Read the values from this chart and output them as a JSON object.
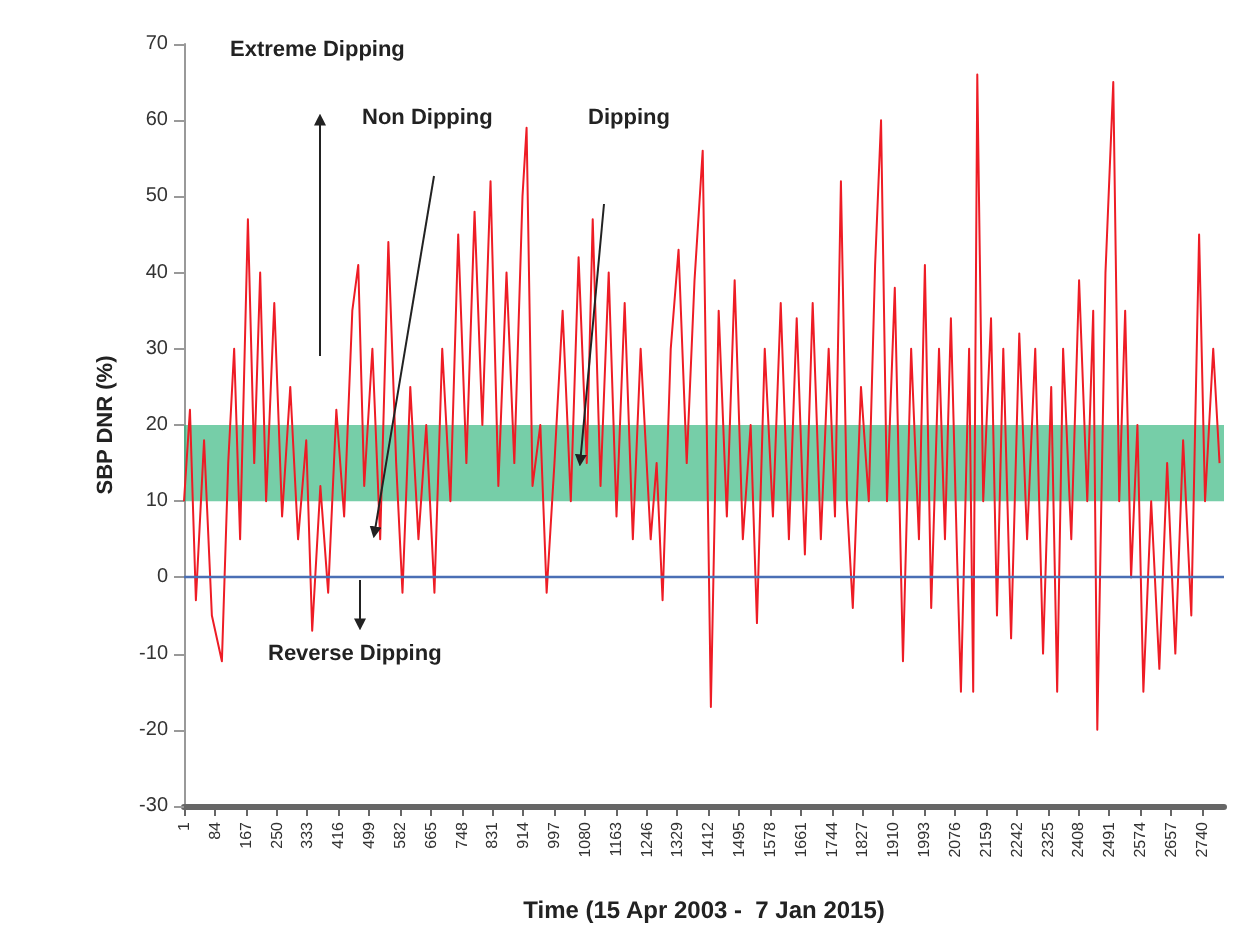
{
  "chart_data": {
    "type": "line",
    "xlabel": "Time (15 Apr 2003 -  7 Jan 2015)",
    "ylabel": "SBP DNR (%)",
    "annotations": [
      "Extreme Dipping",
      "Non Dipping",
      "Dipping",
      "Reverse Dipping"
    ],
    "x": [
      1,
      17,
      33,
      55,
      76,
      103,
      120,
      136,
      152,
      173,
      190,
      206,
      222,
      244,
      265,
      287,
      308,
      330,
      346,
      368,
      389,
      411,
      432,
      454,
      470,
      486,
      508,
      529,
      551,
      572,
      589,
      610,
      632,
      653,
      675,
      696,
      718,
      739,
      761,
      783,
      804,
      826,
      847,
      869,
      890,
      912,
      923,
      939,
      960,
      977,
      998,
      1020,
      1042,
      1063,
      1085,
      1101,
      1122,
      1144,
      1165,
      1187,
      1209,
      1230,
      1257,
      1273,
      1289,
      1311,
      1332,
      1354,
      1375,
      1397,
      1419,
      1440,
      1462,
      1483,
      1505,
      1526,
      1543,
      1564,
      1586,
      1607,
      1629,
      1650,
      1672,
      1693,
      1715,
      1736,
      1753,
      1769,
      1785,
      1801,
      1823,
      1844,
      1861,
      1877,
      1893,
      1914,
      1936,
      1958,
      1979,
      1995,
      2012,
      2033,
      2049,
      2065,
      2082,
      2092,
      2114,
      2125,
      2136,
      2152,
      2173,
      2189,
      2206,
      2227,
      2249,
      2270,
      2292,
      2313,
      2335,
      2351,
      2367,
      2389,
      2410,
      2432,
      2448,
      2459,
      2481,
      2502,
      2518,
      2534,
      2550,
      2567,
      2583,
      2604,
      2626,
      2647,
      2669,
      2690,
      2712,
      2733,
      2749,
      2771,
      2788
    ],
    "series": [
      {
        "color": "#ee1c25",
        "values": [
          10,
          22,
          -3,
          18,
          -5,
          -11,
          15,
          30,
          5,
          47,
          15,
          40,
          10,
          36,
          8,
          25,
          5,
          18,
          -7,
          12,
          -2,
          22,
          8,
          35,
          41,
          12,
          30,
          5,
          44,
          15,
          -2,
          25,
          5,
          20,
          -2,
          30,
          10,
          45,
          15,
          48,
          20,
          52,
          12,
          40,
          15,
          50,
          59,
          12,
          20,
          -2,
          15,
          35,
          10,
          42,
          15,
          47,
          12,
          40,
          8,
          36,
          5,
          30,
          5,
          15,
          -3,
          30,
          43,
          15,
          39,
          56,
          -17,
          35,
          8,
          39,
          5,
          20,
          -6,
          30,
          8,
          36,
          5,
          34,
          3,
          36,
          5,
          30,
          8,
          52,
          10,
          -4,
          25,
          10,
          41,
          60,
          10,
          38,
          -11,
          30,
          5,
          41,
          -4,
          30,
          5,
          34,
          2,
          -15,
          30,
          -15,
          66,
          10,
          34,
          -5,
          30,
          -8,
          32,
          5,
          30,
          -10,
          25,
          -15,
          30,
          5,
          39,
          10,
          35,
          -20,
          40,
          65,
          10,
          35,
          0,
          20,
          -15,
          10,
          -12,
          15,
          -10,
          18,
          -5,
          45,
          10,
          30,
          15
        ]
      }
    ],
    "xlim": [
      1,
      2800
    ],
    "xticks": [
      1,
      84,
      167,
      250,
      333,
      416,
      499,
      582,
      665,
      748,
      831,
      914,
      997,
      1080,
      1163,
      1246,
      1329,
      1412,
      1495,
      1578,
      1661,
      1744,
      1827,
      1910,
      1993,
      2076,
      2159,
      2242,
      2325,
      2408,
      2491,
      2574,
      2657,
      2740
    ],
    "ylim": [
      -30,
      70
    ],
    "yticks": [
      -30,
      -20,
      -10,
      0,
      10,
      20,
      30,
      40,
      50,
      60,
      70
    ],
    "bands": [
      {
        "axis": "y",
        "from": 10,
        "to": 20,
        "color": "#2db37a"
      }
    ],
    "ref_lines": [
      {
        "axis": "y",
        "value": 0,
        "color": "#4a6fb5"
      }
    ],
    "grid": false,
    "marker": "none",
    "line_style": "solid"
  }
}
